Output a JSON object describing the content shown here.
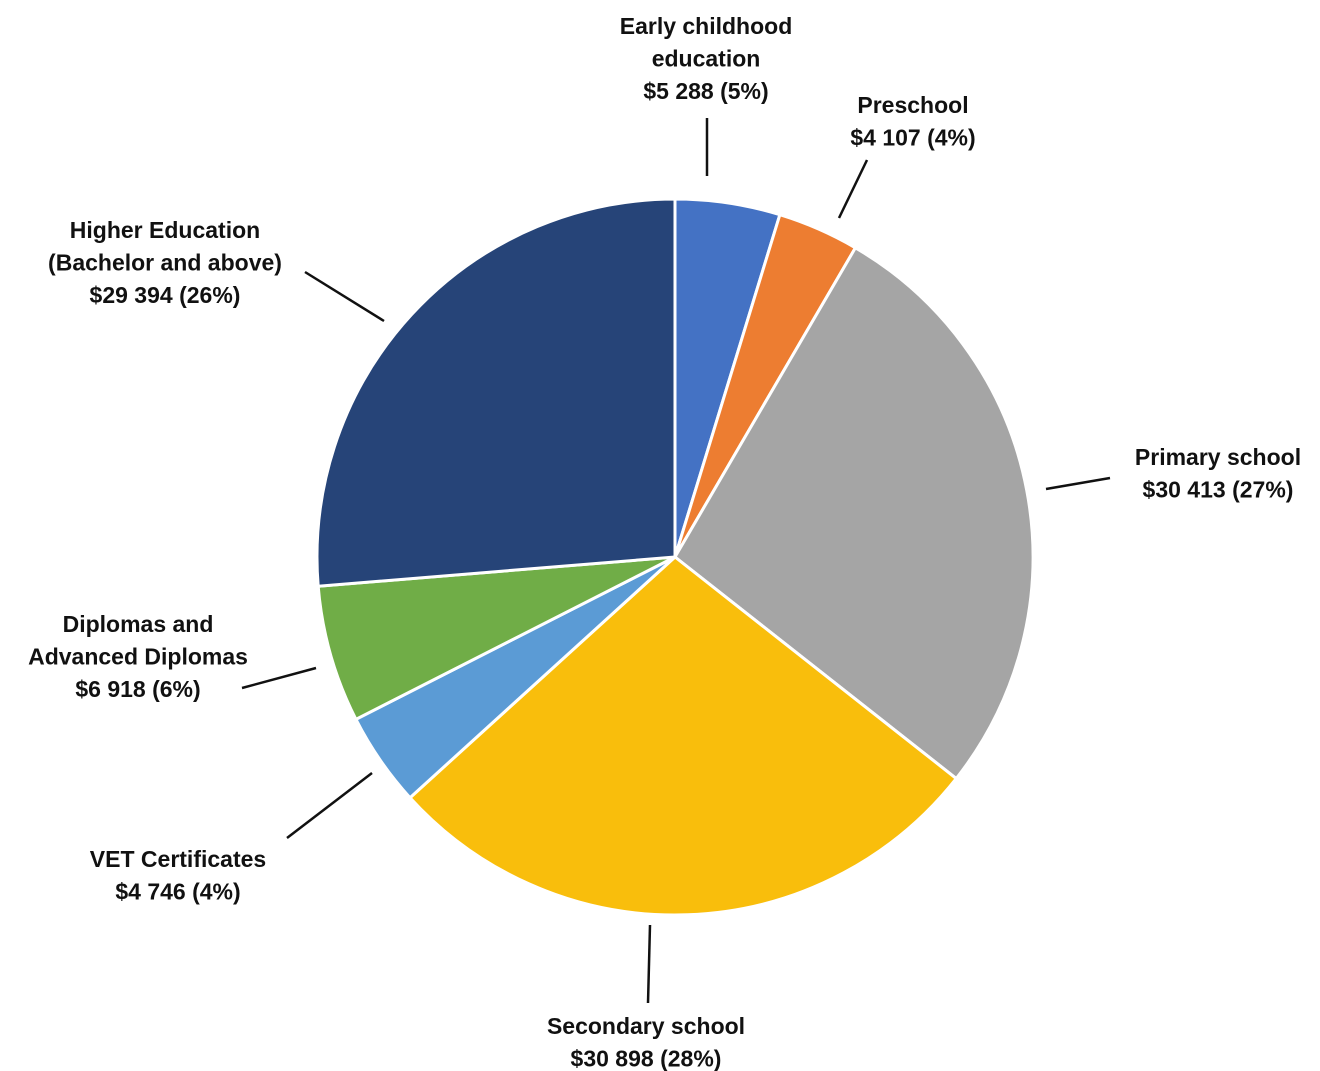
{
  "chart_data": {
    "type": "pie",
    "categories": [
      [
        "Early childhood",
        "education"
      ],
      [
        "Preschool"
      ],
      [
        "Primary school"
      ],
      [
        "Secondary school"
      ],
      [
        "VET Certificates"
      ],
      [
        "Diplomas and",
        "Advanced Diplomas"
      ],
      [
        "Higher Education",
        "(Bachelor and above)"
      ]
    ],
    "values": [
      5288,
      4107,
      30413,
      30898,
      4746,
      6918,
      29394
    ],
    "value_labels": [
      "$5 288 (5%)",
      "$4 107 (4%)",
      "$30 413 (27%)",
      "$30 898 (28%)",
      "$4 746 (4%)",
      "$6 918 (6%)",
      "$29 394 (26%)"
    ],
    "colors": [
      "#4472c4",
      "#ed7d31",
      "#a5a5a5",
      "#f9be0c",
      "#5b9bd5",
      "#70ad47",
      "#264478"
    ]
  }
}
